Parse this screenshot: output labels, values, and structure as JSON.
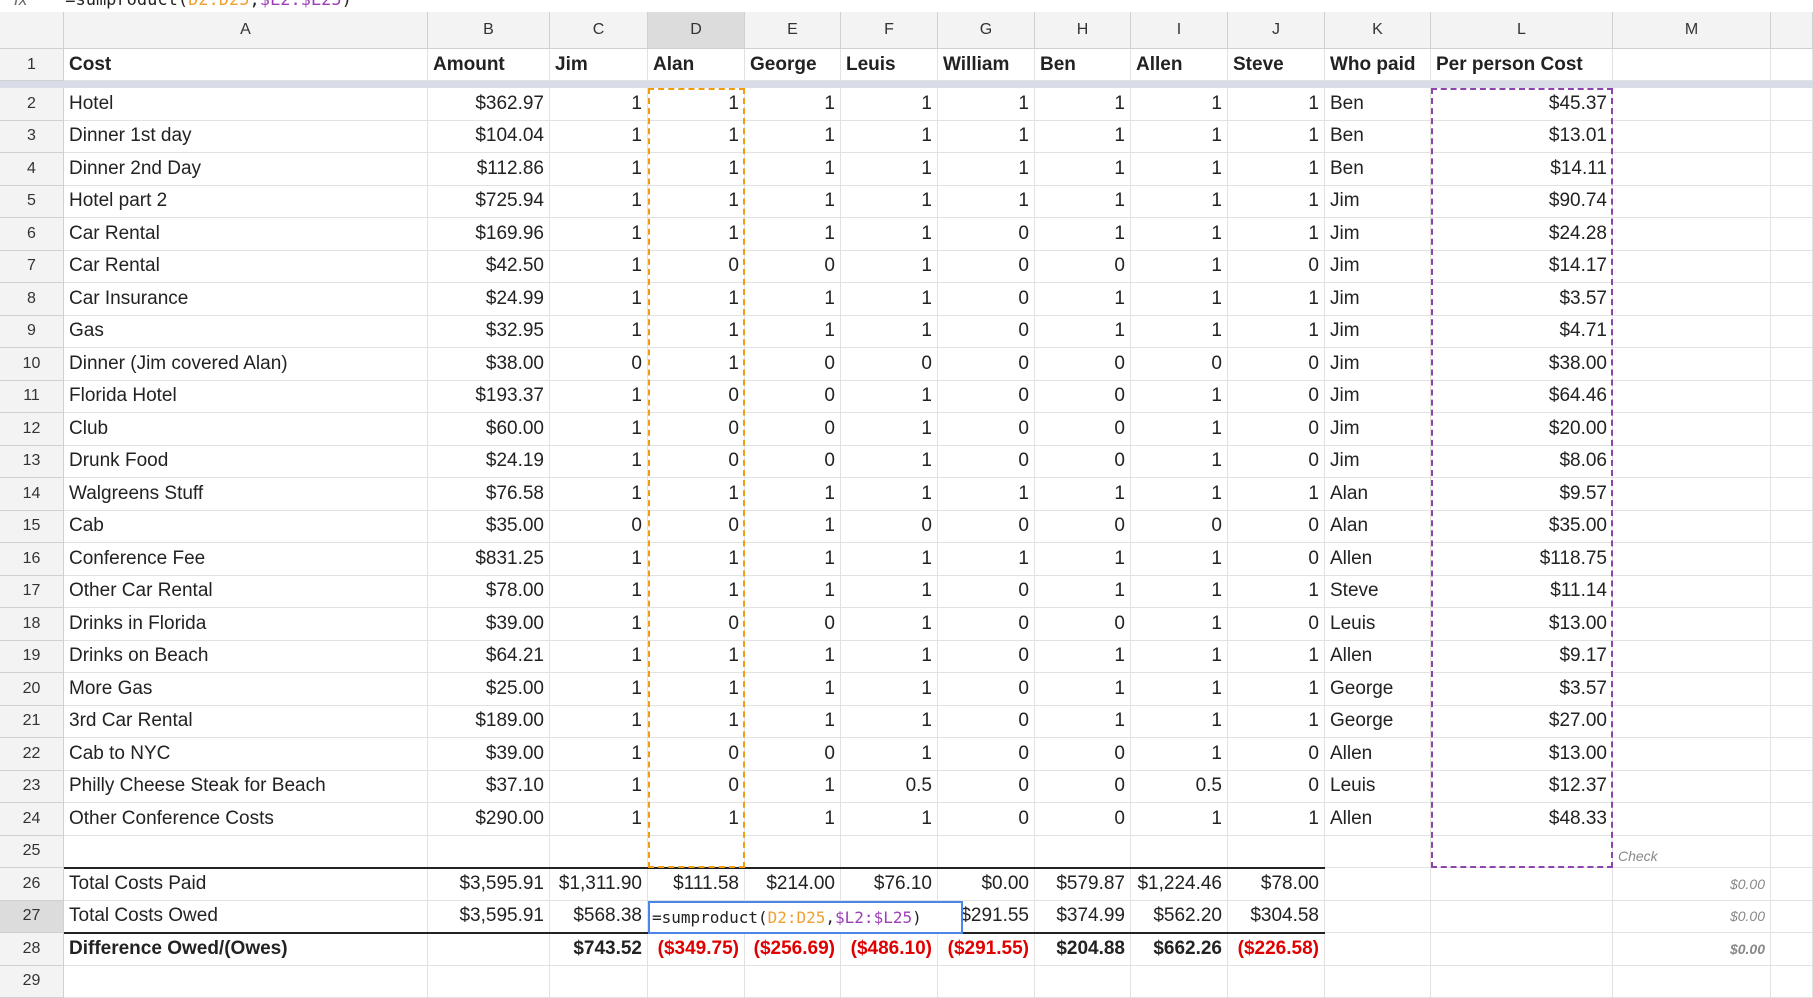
{
  "formula_bar": {
    "label": "fx"
  },
  "editor": {
    "parts": [
      {
        "text": "=sumproduct(",
        "color": "#222222"
      },
      {
        "text": "D2:D25",
        "color": "#f0a030"
      },
      {
        "text": ",",
        "color": "#222222"
      },
      {
        "text": "$L2:$L25",
        "color": "#9c3fb5"
      },
      {
        "text": ")",
        "color": "#222222"
      }
    ]
  },
  "columns": [
    "A",
    "B",
    "C",
    "D",
    "E",
    "F",
    "G",
    "H",
    "I",
    "J",
    "K",
    "L",
    "M"
  ],
  "row_numbers": [
    1,
    2,
    3,
    4,
    5,
    6,
    7,
    8,
    9,
    10,
    11,
    12,
    13,
    14,
    15,
    16,
    17,
    18,
    19,
    20,
    21,
    22,
    23,
    24,
    25,
    26,
    27,
    28,
    29
  ],
  "rows": [
    [
      "Cost",
      "Amount",
      "Jim",
      "Alan",
      "George",
      "Leuis",
      "William",
      "Ben",
      "Allen",
      "Steve",
      "Who paid",
      "Per person Cost",
      null
    ],
    [
      "Hotel",
      "$362.97",
      "1",
      "1",
      "1",
      "1",
      "1",
      "1",
      "1",
      "1",
      "Ben",
      "$45.37",
      null
    ],
    [
      "Dinner 1st day",
      "$104.04",
      "1",
      "1",
      "1",
      "1",
      "1",
      "1",
      "1",
      "1",
      "Ben",
      "$13.01",
      null
    ],
    [
      "Dinner 2nd Day",
      "$112.86",
      "1",
      "1",
      "1",
      "1",
      "1",
      "1",
      "1",
      "1",
      "Ben",
      "$14.11",
      null
    ],
    [
      "Hotel part 2",
      "$725.94",
      "1",
      "1",
      "1",
      "1",
      "1",
      "1",
      "1",
      "1",
      "Jim",
      "$90.74",
      null
    ],
    [
      "Car Rental",
      "$169.96",
      "1",
      "1",
      "1",
      "1",
      "0",
      "1",
      "1",
      "1",
      "Jim",
      "$24.28",
      null
    ],
    [
      "Car Rental",
      "$42.50",
      "1",
      "0",
      "0",
      "1",
      "0",
      "0",
      "1",
      "0",
      "Jim",
      "$14.17",
      null
    ],
    [
      "Car Insurance",
      "$24.99",
      "1",
      "1",
      "1",
      "1",
      "0",
      "1",
      "1",
      "1",
      "Jim",
      "$3.57",
      null
    ],
    [
      "Gas",
      "$32.95",
      "1",
      "1",
      "1",
      "1",
      "0",
      "1",
      "1",
      "1",
      "Jim",
      "$4.71",
      null
    ],
    [
      "Dinner (Jim covered Alan)",
      "$38.00",
      "0",
      "1",
      "0",
      "0",
      "0",
      "0",
      "0",
      "0",
      "Jim",
      "$38.00",
      null
    ],
    [
      "Florida Hotel",
      "$193.37",
      "1",
      "0",
      "0",
      "1",
      "0",
      "0",
      "1",
      "0",
      "Jim",
      "$64.46",
      null
    ],
    [
      "Club",
      "$60.00",
      "1",
      "0",
      "0",
      "1",
      "0",
      "0",
      "1",
      "0",
      "Jim",
      "$20.00",
      null
    ],
    [
      "Drunk Food",
      "$24.19",
      "1",
      "0",
      "0",
      "1",
      "0",
      "0",
      "1",
      "0",
      "Jim",
      "$8.06",
      null
    ],
    [
      "Walgreens Stuff",
      "$76.58",
      "1",
      "1",
      "1",
      "1",
      "1",
      "1",
      "1",
      "1",
      "Alan",
      "$9.57",
      null
    ],
    [
      "Cab",
      "$35.00",
      "0",
      "0",
      "1",
      "0",
      "0",
      "0",
      "0",
      "0",
      "Alan",
      "$35.00",
      null
    ],
    [
      "Conference Fee",
      "$831.25",
      "1",
      "1",
      "1",
      "1",
      "1",
      "1",
      "1",
      "0",
      "Allen",
      "$118.75",
      null
    ],
    [
      "Other Car Rental",
      "$78.00",
      "1",
      "1",
      "1",
      "1",
      "0",
      "1",
      "1",
      "1",
      "Steve",
      "$11.14",
      null
    ],
    [
      "Drinks in Florida",
      "$39.00",
      "1",
      "0",
      "0",
      "1",
      "0",
      "0",
      "1",
      "0",
      "Leuis",
      "$13.00",
      null
    ],
    [
      "Drinks on Beach",
      "$64.21",
      "1",
      "1",
      "1",
      "1",
      "0",
      "1",
      "1",
      "1",
      "Allen",
      "$9.17",
      null
    ],
    [
      "More Gas",
      "$25.00",
      "1",
      "1",
      "1",
      "1",
      "0",
      "1",
      "1",
      "1",
      "George",
      "$3.57",
      null
    ],
    [
      "3rd Car Rental",
      "$189.00",
      "1",
      "1",
      "1",
      "1",
      "0",
      "1",
      "1",
      "1",
      "George",
      "$27.00",
      null
    ],
    [
      "Cab to NYC",
      "$39.00",
      "1",
      "0",
      "0",
      "1",
      "0",
      "0",
      "1",
      "0",
      "Allen",
      "$13.00",
      null
    ],
    [
      "Philly Cheese Steak for Beach",
      "$37.10",
      "1",
      "0",
      "1",
      "0.5",
      "0",
      "0",
      "0.5",
      "0",
      "Leuis",
      "$12.37",
      null
    ],
    [
      "Other Conference Costs",
      "$290.00",
      "1",
      "1",
      "1",
      "1",
      "0",
      "0",
      "1",
      "1",
      "Allen",
      "$48.33",
      null
    ],
    [
      null,
      null,
      null,
      null,
      null,
      null,
      null,
      null,
      null,
      null,
      null,
      null,
      "Check"
    ],
    [
      "Total Costs Paid",
      "$3,595.91",
      "$1,311.90",
      "$111.58",
      "$214.00",
      "$76.10",
      "$0.00",
      "$579.87",
      "$1,224.46",
      "$78.00",
      null,
      null,
      "$0.00"
    ],
    [
      "Total Costs Owed",
      "$3,595.91",
      "$568.38",
      null,
      null,
      null,
      "$291.55",
      "$374.99",
      "$562.20",
      "$304.58",
      null,
      null,
      "$0.00"
    ],
    [
      "Difference Owed/(Owes)",
      null,
      "$743.52",
      "($349.75)",
      "($256.69)",
      "($486.10)",
      "($291.55)",
      "$204.88",
      "$662.26",
      "($226.58)",
      null,
      null,
      "$0.00"
    ]
  ]
}
